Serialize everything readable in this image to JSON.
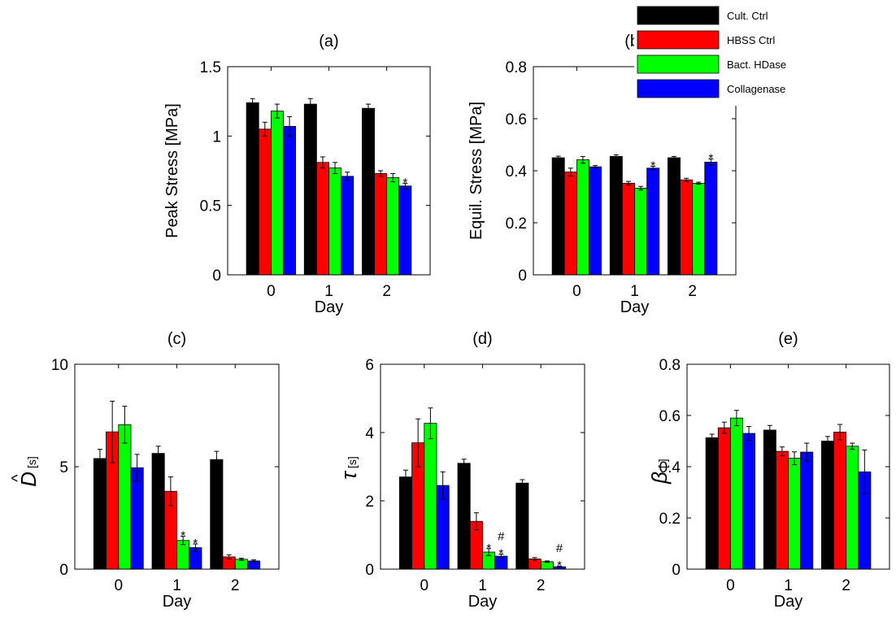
{
  "legend": [
    {
      "label": "Cult. Ctrl",
      "color": "#000000"
    },
    {
      "label": "HBSS Ctrl",
      "color": "#ff0000"
    },
    {
      "label": "Bact. HDase",
      "color": "#00ff00"
    },
    {
      "label": "Collagenase",
      "color": "#0000ff"
    }
  ],
  "chart_data": [
    {
      "type": "bar",
      "title": "(a)",
      "xlabel": "Day",
      "ylabel": "Peak Stress [MPa]",
      "ylabel_symbol": "",
      "ylabel_unit": "",
      "categories": [
        "0",
        "1",
        "2"
      ],
      "ylim": [
        0,
        1.5
      ],
      "yticks": [
        0,
        0.5,
        1,
        1.5
      ],
      "ytick_labels": [
        "0",
        "0.5",
        "1",
        "1.5"
      ],
      "series": [
        {
          "name": "Cult. Ctrl",
          "color": "#000000",
          "values": [
            1.24,
            1.23,
            1.2
          ],
          "errors": [
            0.03,
            0.04,
            0.03
          ]
        },
        {
          "name": "HBSS Ctrl",
          "color": "#ff0000",
          "values": [
            1.05,
            0.81,
            0.73
          ],
          "errors": [
            0.05,
            0.04,
            0.02
          ]
        },
        {
          "name": "Bact. HDase",
          "color": "#00ff00",
          "values": [
            1.18,
            0.77,
            0.7
          ],
          "errors": [
            0.05,
            0.04,
            0.03
          ]
        },
        {
          "name": "Collagenase",
          "color": "#0000ff",
          "values": [
            1.07,
            0.71,
            0.64
          ],
          "errors": [
            0.07,
            0.03,
            0.02
          ]
        }
      ],
      "annotations": [
        {
          "category": 2,
          "series": 3,
          "lines": [
            "*"
          ]
        }
      ]
    },
    {
      "type": "bar",
      "title": "(b)",
      "xlabel": "Day",
      "ylabel": "Equil. Stress [MPa]",
      "ylabel_symbol": "",
      "ylabel_unit": "",
      "categories": [
        "0",
        "1",
        "2"
      ],
      "ylim": [
        0,
        0.8
      ],
      "yticks": [
        0,
        0.2,
        0.4,
        0.6,
        0.8
      ],
      "ytick_labels": [
        "0",
        "0.2",
        "0.4",
        "0.6",
        "0.8"
      ],
      "series": [
        {
          "name": "Cult. Ctrl",
          "color": "#000000",
          "values": [
            0.45,
            0.455,
            0.45
          ],
          "errors": [
            0.006,
            0.006,
            0.005
          ]
        },
        {
          "name": "HBSS Ctrl",
          "color": "#ff0000",
          "values": [
            0.395,
            0.352,
            0.365
          ],
          "errors": [
            0.015,
            0.007,
            0.006
          ]
        },
        {
          "name": "Bact. HDase",
          "color": "#00ff00",
          "values": [
            0.442,
            0.333,
            0.352
          ],
          "errors": [
            0.013,
            0.007,
            0.004
          ]
        },
        {
          "name": "Collagenase",
          "color": "#0000ff",
          "values": [
            0.415,
            0.41,
            0.433
          ],
          "errors": [
            0.005,
            0.007,
            0.012
          ]
        }
      ],
      "annotations": [
        {
          "category": 1,
          "series": 3,
          "lines": [
            "*"
          ]
        },
        {
          "category": 2,
          "series": 3,
          "lines": [
            "*"
          ]
        }
      ]
    },
    {
      "type": "bar",
      "title": "(c)",
      "xlabel": "Day",
      "ylabel": "",
      "ylabel_symbol": "D",
      "ylabel_hat": "^",
      "ylabel_unit": "[s]",
      "categories": [
        "0",
        "1",
        "2"
      ],
      "ylim": [
        0,
        10
      ],
      "yticks": [
        0,
        5,
        10
      ],
      "ytick_labels": [
        "0",
        "5",
        "10"
      ],
      "series": [
        {
          "name": "Cult. Ctrl",
          "color": "#000000",
          "values": [
            5.4,
            5.65,
            5.35
          ],
          "errors": [
            0.45,
            0.35,
            0.4
          ]
        },
        {
          "name": "HBSS Ctrl",
          "color": "#ff0000",
          "values": [
            6.7,
            3.8,
            0.6
          ],
          "errors": [
            1.5,
            0.7,
            0.1
          ]
        },
        {
          "name": "Bact. HDase",
          "color": "#00ff00",
          "values": [
            7.05,
            1.4,
            0.48
          ],
          "errors": [
            0.9,
            0.2,
            0.05
          ]
        },
        {
          "name": "Collagenase",
          "color": "#0000ff",
          "values": [
            4.95,
            1.05,
            0.4
          ],
          "errors": [
            0.65,
            0.18,
            0.05
          ]
        }
      ],
      "annotations": [
        {
          "category": 1,
          "series": 2,
          "lines": [
            "*"
          ]
        },
        {
          "category": 1,
          "series": 3,
          "lines": [
            "*"
          ]
        }
      ]
    },
    {
      "type": "bar",
      "title": "(d)",
      "xlabel": "Day",
      "ylabel": "",
      "ylabel_symbol": "τ",
      "ylabel_unit": "[s]",
      "categories": [
        "0",
        "1",
        "2"
      ],
      "ylim": [
        0,
        6
      ],
      "yticks": [
        0,
        2,
        4,
        6
      ],
      "ytick_labels": [
        "0",
        "2",
        "4",
        "6"
      ],
      "series": [
        {
          "name": "Cult. Ctrl",
          "color": "#000000",
          "values": [
            2.7,
            3.1,
            2.52
          ],
          "errors": [
            0.2,
            0.12,
            0.1
          ]
        },
        {
          "name": "HBSS Ctrl",
          "color": "#ff0000",
          "values": [
            3.7,
            1.4,
            0.3
          ],
          "errors": [
            0.7,
            0.25,
            0.04
          ]
        },
        {
          "name": "Bact. HDase",
          "color": "#00ff00",
          "values": [
            4.27,
            0.5,
            0.22
          ],
          "errors": [
            0.45,
            0.1,
            0.02
          ]
        },
        {
          "name": "Collagenase",
          "color": "#0000ff",
          "values": [
            2.45,
            0.38,
            0.07
          ],
          "errors": [
            0.4,
            0.06,
            0.02
          ]
        }
      ],
      "annotations": [
        {
          "category": 1,
          "series": 2,
          "lines": [
            "*"
          ]
        },
        {
          "category": 1,
          "series": 3,
          "lines": [
            "#",
            "*"
          ]
        },
        {
          "category": 2,
          "series": 3,
          "lines": [
            "#",
            "*"
          ]
        }
      ]
    },
    {
      "type": "bar",
      "title": "(e)",
      "xlabel": "Day",
      "ylabel": "",
      "ylabel_symbol": "β",
      "ylabel_unit": "[ ]",
      "categories": [
        "0",
        "1",
        "2"
      ],
      "ylim": [
        0,
        0.8
      ],
      "yticks": [
        0,
        0.2,
        0.4,
        0.6,
        0.8
      ],
      "ytick_labels": [
        "0",
        "0.2",
        "0.4",
        "0.6",
        "0.8"
      ],
      "series": [
        {
          "name": "Cult. Ctrl",
          "color": "#000000",
          "values": [
            0.513,
            0.543,
            0.5
          ],
          "errors": [
            0.014,
            0.018,
            0.018
          ]
        },
        {
          "name": "HBSS Ctrl",
          "color": "#ff0000",
          "values": [
            0.552,
            0.46,
            0.535
          ],
          "errors": [
            0.022,
            0.017,
            0.03
          ]
        },
        {
          "name": "Bact. HDase",
          "color": "#00ff00",
          "values": [
            0.59,
            0.433,
            0.48
          ],
          "errors": [
            0.03,
            0.025,
            0.012
          ]
        },
        {
          "name": "Collagenase",
          "color": "#0000ff",
          "values": [
            0.53,
            0.457,
            0.38
          ],
          "errors": [
            0.027,
            0.035,
            0.085
          ]
        }
      ],
      "annotations": []
    }
  ]
}
